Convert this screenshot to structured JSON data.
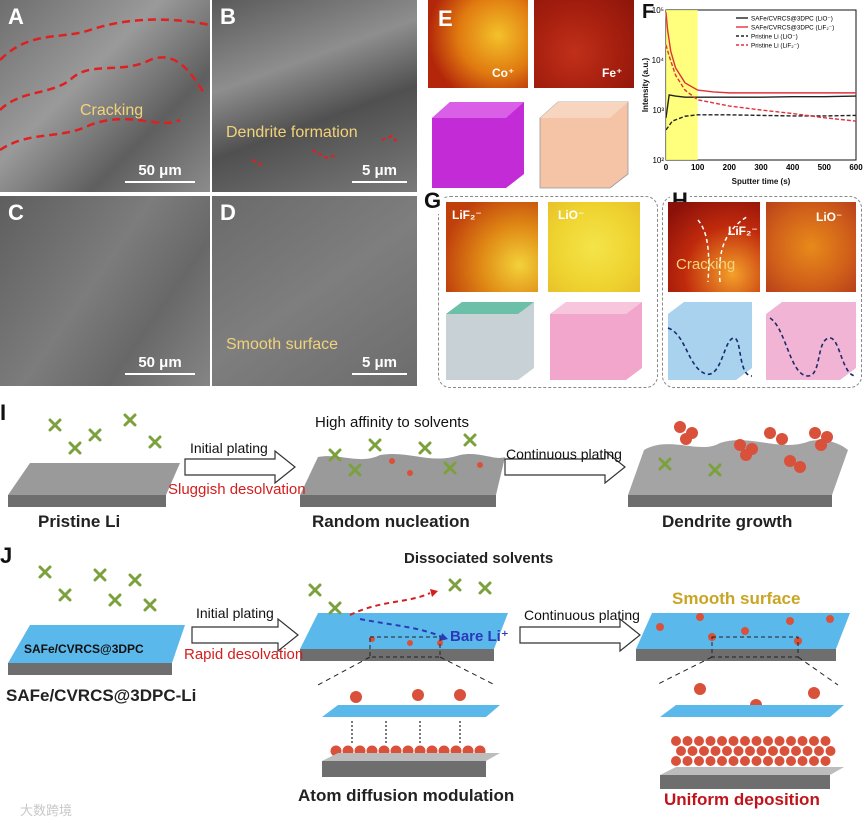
{
  "panels": {
    "A": {
      "letter": "A",
      "note": "Cracking",
      "scale": "50 μm"
    },
    "B": {
      "letter": "B",
      "note": "Dendrite formation",
      "scale": "5 μm"
    },
    "C": {
      "letter": "C",
      "scale": "50 μm"
    },
    "D": {
      "letter": "D",
      "note": "Smooth surface",
      "scale": "5 μm"
    },
    "E": {
      "letter": "E",
      "map1": "Co⁺",
      "map2": "Fe⁺"
    },
    "G": {
      "letter": "G",
      "map1": "LiF₂⁻",
      "map2": "LiO⁻"
    },
    "H": {
      "letter": "H",
      "map1": "LiF₂⁻",
      "map2": "LiO⁻",
      "note": "Cracking"
    },
    "I": {
      "letter": "I",
      "step1": "Initial plating",
      "step1_note": "Sluggish desolvation",
      "step2_top": "High affinity to solvents",
      "step2": "Continuous plating",
      "cap1": "Pristine Li",
      "cap2": "Random nucleation",
      "cap3": "Dendrite growth"
    },
    "J": {
      "letter": "J",
      "substrate_label": "SAFe/CVRCS@3DPC",
      "step1": "Initial plating",
      "step1_note": "Rapid desolvation",
      "dissociated": "Dissociated solvents",
      "bare": "Bare Li⁺",
      "step2": "Continuous plating",
      "smooth": "Smooth surface",
      "cap1": "SAFe/CVRCS@3DPC-Li",
      "cap2": "Atom diffusion modulation",
      "cap3": "Uniform deposition"
    },
    "watermark": "大数跨境"
  },
  "chart_data": {
    "type": "line",
    "letter": "F",
    "xlabel": "Sputter time (s)",
    "ylabel": "Intensity (a.u.)",
    "xlim": [
      0,
      600
    ],
    "ylim_log10": [
      2,
      5
    ],
    "xticks": [
      0,
      100,
      200,
      300,
      400,
      500,
      600
    ],
    "yticks": [
      "10²",
      "10³",
      "10⁴",
      "10⁵"
    ],
    "highlight_x": [
      0,
      100
    ],
    "legend_placement": "top-right",
    "series": [
      {
        "name": "SAFe/CVRCS@3DPC (LiO⁻)",
        "color": "#222222",
        "dash": "solid",
        "x": [
          0,
          10,
          30,
          60,
          100,
          200,
          300,
          400,
          500,
          600
        ],
        "y": [
          700,
          2000,
          1900,
          1800,
          1800,
          1800,
          1800,
          1850,
          1850,
          1900
        ]
      },
      {
        "name": "SAFe/CVRCS@3DPC (LiF₂⁻)",
        "color": "#e0323a",
        "dash": "solid",
        "x": [
          0,
          5,
          15,
          30,
          60,
          100,
          150,
          200,
          300,
          400,
          500,
          600
        ],
        "y": [
          90000,
          40000,
          15000,
          7000,
          3500,
          2500,
          2300,
          2200,
          2200,
          2200,
          2200,
          2200
        ]
      },
      {
        "name": "Pristine Li (LiO⁻)",
        "color": "#222222",
        "dash": "dashed",
        "x": [
          0,
          20,
          60,
          100,
          200,
          300,
          400,
          500,
          600
        ],
        "y": [
          400,
          600,
          750,
          800,
          800,
          780,
          760,
          760,
          780
        ]
      },
      {
        "name": "Pristine Li (LiF₂⁻)",
        "color": "#e0323a",
        "dash": "dashed",
        "x": [
          0,
          10,
          30,
          60,
          100,
          200,
          300,
          400,
          500,
          600
        ],
        "y": [
          20000,
          12000,
          5000,
          2500,
          1600,
          1200,
          1000,
          850,
          700,
          600
        ]
      }
    ]
  }
}
